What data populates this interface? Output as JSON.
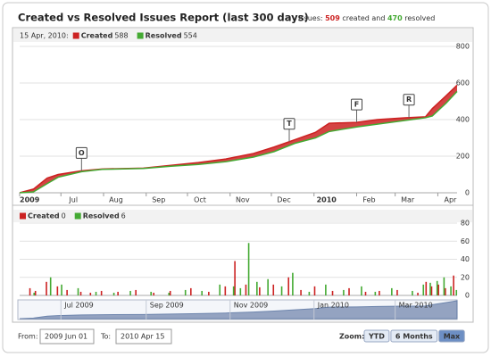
{
  "header": {
    "title": "Created vs Resolved Issues Report (last 300 days)",
    "summary": {
      "prefix": "Issues:",
      "created": 509,
      "middle": "created and",
      "resolved": 470,
      "suffix": "resolved"
    }
  },
  "chart_data": [
    {
      "type": "area",
      "legend_date": "15 Apr, 2010:",
      "x": [
        0,
        10,
        20,
        28,
        45,
        60,
        90,
        110,
        130,
        150,
        170,
        185,
        200,
        215,
        225,
        245,
        260,
        280,
        295,
        300,
        310,
        318
      ],
      "series": [
        {
          "name": "Created",
          "color": "#cc2222",
          "legend_value": 588,
          "values": [
            0,
            20,
            80,
            100,
            120,
            130,
            135,
            150,
            165,
            185,
            215,
            250,
            290,
            330,
            380,
            385,
            400,
            410,
            415,
            460,
            530,
            588
          ]
        },
        {
          "name": "Resolved",
          "color": "#44aa33",
          "legend_value": 554,
          "values": [
            0,
            5,
            50,
            85,
            115,
            128,
            133,
            145,
            155,
            170,
            195,
            225,
            270,
            300,
            335,
            360,
            375,
            395,
            410,
            420,
            490,
            554
          ]
        }
      ],
      "xlim": [
        0,
        318
      ],
      "xticks": [
        {
          "value": 0,
          "label": "2009"
        },
        {
          "value": 30,
          "label": "Jul"
        },
        {
          "value": 61,
          "label": "Aug"
        },
        {
          "value": 92,
          "label": "Sep"
        },
        {
          "value": 122,
          "label": "Oct"
        },
        {
          "value": 153,
          "label": "Nov"
        },
        {
          "value": 183,
          "label": "Dec"
        },
        {
          "value": 214,
          "label": "2010"
        },
        {
          "value": 245,
          "label": "Feb"
        },
        {
          "value": 273,
          "label": "Mar"
        },
        {
          "value": 304,
          "label": "Apr"
        }
      ],
      "ylim": [
        0,
        800
      ],
      "yticks": [
        0,
        200,
        400,
        600,
        800
      ],
      "grid": true,
      "flags": [
        {
          "x": 45,
          "label": "O"
        },
        {
          "x": 196,
          "label": "T"
        },
        {
          "x": 245,
          "label": "F"
        },
        {
          "x": 283,
          "label": "R"
        }
      ]
    },
    {
      "type": "bar",
      "series": [
        {
          "name": "Created",
          "color": "#cc2222",
          "legend_value": 0,
          "x": [
            8,
            12,
            20,
            28,
            35,
            45,
            52,
            60,
            72,
            85,
            98,
            110,
            125,
            138,
            150,
            157,
            165,
            175,
            185,
            196,
            205,
            215,
            228,
            240,
            252,
            262,
            275,
            290,
            296,
            300,
            305,
            310,
            316
          ],
          "values": [
            8,
            5,
            15,
            10,
            6,
            4,
            3,
            5,
            4,
            6,
            3,
            5,
            8,
            4,
            10,
            38,
            12,
            9,
            12,
            20,
            6,
            10,
            5,
            8,
            4,
            5,
            6,
            3,
            15,
            10,
            12,
            8,
            22
          ]
        },
        {
          "name": "Resolved",
          "color": "#44aa33",
          "legend_value": 6,
          "x": [
            10,
            22,
            30,
            42,
            55,
            68,
            80,
            95,
            108,
            120,
            132,
            145,
            155,
            160,
            166,
            172,
            180,
            190,
            198,
            210,
            222,
            235,
            248,
            258,
            270,
            285,
            293,
            298,
            303,
            308,
            313,
            317
          ],
          "values": [
            3,
            20,
            12,
            8,
            4,
            3,
            5,
            4,
            3,
            6,
            5,
            12,
            10,
            8,
            58,
            15,
            18,
            10,
            25,
            4,
            12,
            6,
            10,
            4,
            8,
            5,
            12,
            14,
            16,
            20,
            10,
            6
          ]
        }
      ],
      "xlim": [
        0,
        318
      ],
      "ylim": [
        0,
        80
      ],
      "yticks": [
        0,
        20,
        40,
        60,
        80
      ],
      "grid": true
    }
  ],
  "navigator": {
    "xticks": [
      {
        "value": 30,
        "label": "Jul 2009"
      },
      {
        "value": 92,
        "label": "Sep 2009"
      },
      {
        "value": 153,
        "label": "Nov 2009"
      },
      {
        "value": 214,
        "label": "Jan 2010"
      },
      {
        "value": 273,
        "label": "Mar 2010"
      }
    ]
  },
  "range": {
    "from_label": "From:",
    "from": "2009 Jun 01",
    "to_label": "To:",
    "to": "2010 Apr 15"
  },
  "zoom": {
    "label": "Zoom:",
    "buttons": [
      "YTD",
      "6 Months",
      "Max"
    ]
  }
}
